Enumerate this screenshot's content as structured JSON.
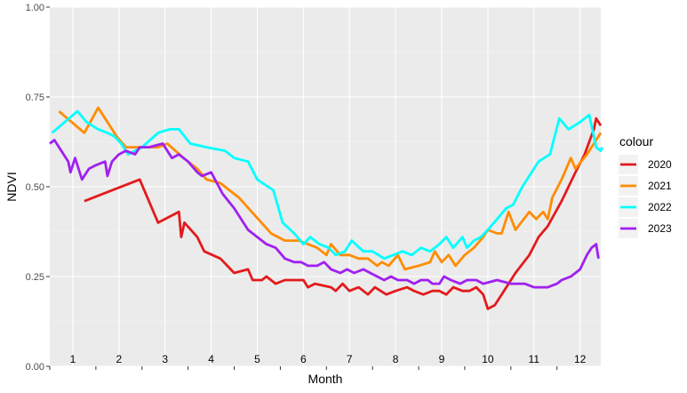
{
  "chart_data": {
    "type": "line",
    "title": "",
    "xlabel": "Month",
    "ylabel": "NDVI",
    "xlim": [
      0.5,
      12.45
    ],
    "ylim": [
      0,
      1
    ],
    "month_labels": [
      "1",
      "2",
      "3",
      "4",
      "5",
      "6",
      "7",
      "8",
      "9",
      "10",
      "11",
      "12"
    ],
    "y_ticks": [
      0,
      0.25,
      0.5,
      0.75,
      1
    ],
    "y_tick_labels": [
      "0.00",
      "0.25",
      "0.50",
      "0.75",
      "1.00"
    ],
    "legend_title": "colour",
    "legend_position": "right",
    "grid": true,
    "background": "#EBEBEB",
    "series": [
      {
        "name": "2020",
        "color": "#E41A1C",
        "points": [
          [
            1.25,
            0.46
          ],
          [
            2.45,
            0.52
          ],
          [
            2.85,
            0.4
          ],
          [
            3.3,
            0.43
          ],
          [
            3.35,
            0.36
          ],
          [
            3.42,
            0.4
          ],
          [
            3.7,
            0.36
          ],
          [
            3.85,
            0.32
          ],
          [
            4.2,
            0.3
          ],
          [
            4.5,
            0.26
          ],
          [
            4.8,
            0.27
          ],
          [
            4.9,
            0.24
          ],
          [
            5.1,
            0.24
          ],
          [
            5.2,
            0.25
          ],
          [
            5.4,
            0.23
          ],
          [
            5.6,
            0.24
          ],
          [
            6.0,
            0.24
          ],
          [
            6.1,
            0.22
          ],
          [
            6.25,
            0.23
          ],
          [
            6.6,
            0.22
          ],
          [
            6.7,
            0.21
          ],
          [
            6.85,
            0.23
          ],
          [
            7.0,
            0.21
          ],
          [
            7.2,
            0.22
          ],
          [
            7.4,
            0.2
          ],
          [
            7.55,
            0.22
          ],
          [
            7.8,
            0.2
          ],
          [
            8.0,
            0.21
          ],
          [
            8.25,
            0.22
          ],
          [
            8.4,
            0.21
          ],
          [
            8.6,
            0.2
          ],
          [
            8.8,
            0.21
          ],
          [
            8.95,
            0.21
          ],
          [
            9.1,
            0.2
          ],
          [
            9.25,
            0.22
          ],
          [
            9.45,
            0.21
          ],
          [
            9.6,
            0.21
          ],
          [
            9.75,
            0.22
          ],
          [
            9.9,
            0.2
          ],
          [
            10.0,
            0.16
          ],
          [
            10.15,
            0.17
          ],
          [
            10.3,
            0.2
          ],
          [
            10.6,
            0.26
          ],
          [
            10.9,
            0.31
          ],
          [
            11.1,
            0.36
          ],
          [
            11.3,
            0.39
          ],
          [
            11.6,
            0.46
          ],
          [
            11.9,
            0.54
          ],
          [
            12.1,
            0.59
          ],
          [
            12.3,
            0.66
          ],
          [
            12.35,
            0.69
          ],
          [
            12.45,
            0.67
          ]
        ]
      },
      {
        "name": "2021",
        "color": "#FF8C00",
        "points": [
          [
            0.7,
            0.71
          ],
          [
            1.25,
            0.65
          ],
          [
            1.55,
            0.72
          ],
          [
            1.95,
            0.64
          ],
          [
            2.15,
            0.61
          ],
          [
            2.5,
            0.61
          ],
          [
            2.85,
            0.61
          ],
          [
            3.05,
            0.62
          ],
          [
            3.4,
            0.58
          ],
          [
            3.7,
            0.55
          ],
          [
            3.9,
            0.52
          ],
          [
            4.2,
            0.51
          ],
          [
            4.6,
            0.47
          ],
          [
            4.95,
            0.42
          ],
          [
            5.3,
            0.37
          ],
          [
            5.6,
            0.35
          ],
          [
            5.9,
            0.35
          ],
          [
            6.1,
            0.34
          ],
          [
            6.3,
            0.33
          ],
          [
            6.5,
            0.31
          ],
          [
            6.6,
            0.34
          ],
          [
            6.8,
            0.31
          ],
          [
            7.0,
            0.31
          ],
          [
            7.2,
            0.3
          ],
          [
            7.4,
            0.3
          ],
          [
            7.6,
            0.28
          ],
          [
            7.7,
            0.29
          ],
          [
            7.85,
            0.28
          ],
          [
            8.05,
            0.31
          ],
          [
            8.2,
            0.27
          ],
          [
            8.5,
            0.28
          ],
          [
            8.75,
            0.29
          ],
          [
            8.85,
            0.32
          ],
          [
            9.0,
            0.29
          ],
          [
            9.15,
            0.31
          ],
          [
            9.3,
            0.28
          ],
          [
            9.5,
            0.31
          ],
          [
            9.7,
            0.33
          ],
          [
            9.9,
            0.36
          ],
          [
            10.0,
            0.38
          ],
          [
            10.2,
            0.37
          ],
          [
            10.3,
            0.37
          ],
          [
            10.45,
            0.43
          ],
          [
            10.6,
            0.38
          ],
          [
            10.9,
            0.43
          ],
          [
            11.05,
            0.41
          ],
          [
            11.2,
            0.43
          ],
          [
            11.3,
            0.41
          ],
          [
            11.4,
            0.47
          ],
          [
            11.6,
            0.52
          ],
          [
            11.8,
            0.58
          ],
          [
            11.9,
            0.55
          ],
          [
            12.15,
            0.59
          ],
          [
            12.4,
            0.64
          ],
          [
            12.45,
            0.65
          ]
        ]
      },
      {
        "name": "2022",
        "color": "#00FFFF",
        "points": [
          [
            0.55,
            0.65
          ],
          [
            1.1,
            0.71
          ],
          [
            1.3,
            0.68
          ],
          [
            1.55,
            0.66
          ],
          [
            1.75,
            0.65
          ],
          [
            1.9,
            0.64
          ],
          [
            2.05,
            0.62
          ],
          [
            2.2,
            0.59
          ],
          [
            2.5,
            0.61
          ],
          [
            2.85,
            0.65
          ],
          [
            3.1,
            0.66
          ],
          [
            3.3,
            0.66
          ],
          [
            3.55,
            0.62
          ],
          [
            3.9,
            0.61
          ],
          [
            4.3,
            0.6
          ],
          [
            4.5,
            0.58
          ],
          [
            4.8,
            0.57
          ],
          [
            5.0,
            0.52
          ],
          [
            5.35,
            0.49
          ],
          [
            5.55,
            0.4
          ],
          [
            5.8,
            0.37
          ],
          [
            6.0,
            0.34
          ],
          [
            6.15,
            0.36
          ],
          [
            6.35,
            0.34
          ],
          [
            6.55,
            0.33
          ],
          [
            6.7,
            0.31
          ],
          [
            6.9,
            0.32
          ],
          [
            7.05,
            0.35
          ],
          [
            7.3,
            0.32
          ],
          [
            7.5,
            0.32
          ],
          [
            7.75,
            0.3
          ],
          [
            7.95,
            0.31
          ],
          [
            8.15,
            0.32
          ],
          [
            8.35,
            0.31
          ],
          [
            8.55,
            0.33
          ],
          [
            8.75,
            0.32
          ],
          [
            8.95,
            0.34
          ],
          [
            9.1,
            0.36
          ],
          [
            9.25,
            0.33
          ],
          [
            9.45,
            0.36
          ],
          [
            9.55,
            0.33
          ],
          [
            9.7,
            0.35
          ],
          [
            9.85,
            0.36
          ],
          [
            10.0,
            0.38
          ],
          [
            10.2,
            0.41
          ],
          [
            10.4,
            0.44
          ],
          [
            10.55,
            0.45
          ],
          [
            10.75,
            0.5
          ],
          [
            11.0,
            0.55
          ],
          [
            11.1,
            0.57
          ],
          [
            11.35,
            0.59
          ],
          [
            11.45,
            0.64
          ],
          [
            11.55,
            0.69
          ],
          [
            11.75,
            0.66
          ],
          [
            12.0,
            0.68
          ],
          [
            12.2,
            0.7
          ],
          [
            12.35,
            0.61
          ],
          [
            12.45,
            0.6
          ],
          [
            12.48,
            0.61
          ]
        ]
      },
      {
        "name": "2023",
        "color": "#A020F0",
        "points": [
          [
            0.5,
            0.62
          ],
          [
            0.6,
            0.63
          ],
          [
            0.75,
            0.6
          ],
          [
            0.9,
            0.57
          ],
          [
            0.95,
            0.54
          ],
          [
            1.05,
            0.58
          ],
          [
            1.2,
            0.52
          ],
          [
            1.35,
            0.55
          ],
          [
            1.5,
            0.56
          ],
          [
            1.7,
            0.57
          ],
          [
            1.75,
            0.53
          ],
          [
            1.85,
            0.57
          ],
          [
            2.0,
            0.59
          ],
          [
            2.15,
            0.6
          ],
          [
            2.35,
            0.59
          ],
          [
            2.45,
            0.61
          ],
          [
            2.65,
            0.61
          ],
          [
            2.95,
            0.62
          ],
          [
            3.05,
            0.6
          ],
          [
            3.15,
            0.58
          ],
          [
            3.3,
            0.59
          ],
          [
            3.5,
            0.57
          ],
          [
            3.7,
            0.54
          ],
          [
            3.8,
            0.53
          ],
          [
            4.0,
            0.54
          ],
          [
            4.25,
            0.48
          ],
          [
            4.5,
            0.44
          ],
          [
            4.8,
            0.38
          ],
          [
            5.0,
            0.36
          ],
          [
            5.2,
            0.34
          ],
          [
            5.4,
            0.33
          ],
          [
            5.6,
            0.3
          ],
          [
            5.8,
            0.29
          ],
          [
            5.95,
            0.29
          ],
          [
            6.1,
            0.28
          ],
          [
            6.3,
            0.28
          ],
          [
            6.45,
            0.29
          ],
          [
            6.6,
            0.27
          ],
          [
            6.8,
            0.26
          ],
          [
            6.95,
            0.27
          ],
          [
            7.1,
            0.26
          ],
          [
            7.3,
            0.27
          ],
          [
            7.45,
            0.26
          ],
          [
            7.6,
            0.25
          ],
          [
            7.75,
            0.24
          ],
          [
            7.9,
            0.25
          ],
          [
            8.05,
            0.24
          ],
          [
            8.25,
            0.24
          ],
          [
            8.4,
            0.23
          ],
          [
            8.55,
            0.24
          ],
          [
            8.7,
            0.24
          ],
          [
            8.8,
            0.23
          ],
          [
            8.95,
            0.23
          ],
          [
            9.05,
            0.25
          ],
          [
            9.2,
            0.24
          ],
          [
            9.4,
            0.23
          ],
          [
            9.55,
            0.24
          ],
          [
            9.75,
            0.24
          ],
          [
            9.9,
            0.23
          ],
          [
            10.2,
            0.24
          ],
          [
            10.5,
            0.23
          ],
          [
            10.8,
            0.23
          ],
          [
            11.0,
            0.22
          ],
          [
            11.3,
            0.22
          ],
          [
            11.5,
            0.23
          ],
          [
            11.6,
            0.24
          ],
          [
            11.8,
            0.25
          ],
          [
            12.0,
            0.27
          ],
          [
            12.15,
            0.31
          ],
          [
            12.25,
            0.33
          ],
          [
            12.35,
            0.34
          ],
          [
            12.4,
            0.3
          ]
        ]
      }
    ]
  }
}
